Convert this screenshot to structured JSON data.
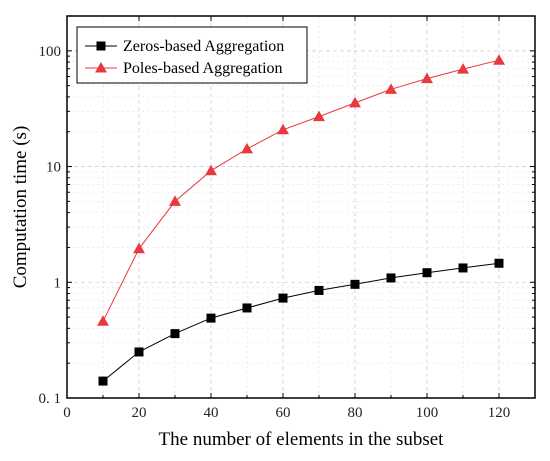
{
  "chart_data": {
    "type": "line",
    "title": "",
    "xlabel": "The number of elements in the subset",
    "ylabel": "Computation time (s)",
    "xlim": [
      0,
      130
    ],
    "ylim": [
      0.1,
      200
    ],
    "y_scale": "log",
    "x_ticks": [
      0,
      20,
      40,
      60,
      80,
      100,
      120
    ],
    "x_tick_labels": [
      "0",
      "20",
      "40",
      "60",
      "80",
      "100",
      "120"
    ],
    "y_ticks": [
      0.1,
      1,
      10,
      100
    ],
    "y_tick_labels": [
      "0. 1",
      "1",
      "10",
      "100"
    ],
    "grid": true,
    "legend_position": "top-left",
    "x": [
      10,
      20,
      30,
      40,
      50,
      60,
      70,
      80,
      90,
      100,
      110,
      120
    ],
    "series": [
      {
        "name": "Zeros-based Aggregation",
        "color": "#000000",
        "marker": "square",
        "values": [
          0.14,
          0.25,
          0.36,
          0.49,
          0.6,
          0.73,
          0.85,
          0.96,
          1.09,
          1.21,
          1.33,
          1.46
        ]
      },
      {
        "name": "Poles-based Aggregation",
        "color": "#e8393f",
        "marker": "triangle",
        "values": [
          0.46,
          1.95,
          5.0,
          9.2,
          14.2,
          20.8,
          27.0,
          35.5,
          46.5,
          57.5,
          69.5,
          83.0
        ]
      }
    ]
  }
}
